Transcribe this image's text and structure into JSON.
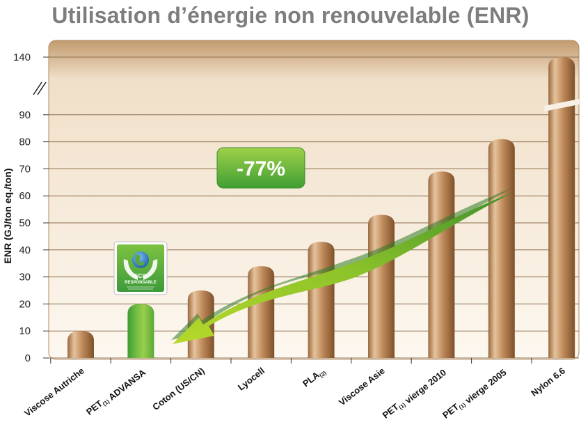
{
  "chart_data": {
    "type": "bar",
    "title": "Utilisation d’énergie non renouvelable (ENR)",
    "ylabel": "ENR (GJ/ton eq./ton)",
    "xlabel": "",
    "ylim": [
      0,
      140
    ],
    "axis_break": [
      90,
      140
    ],
    "yticks": [
      0,
      10,
      20,
      30,
      40,
      50,
      60,
      70,
      80,
      90,
      140
    ],
    "categories": [
      "Viscose Autriche",
      "PET(1) ADVANSA",
      "Coton (US/CN)",
      "Lyocell",
      "PLA(2)",
      "Viscose Asie",
      "PET(1) vierge 2010",
      "PET(1) vierge 2005",
      "Nylon 6.6"
    ],
    "category_parts": [
      [
        {
          "t": "Viscose Autriche"
        }
      ],
      [
        {
          "t": "PET"
        },
        {
          "t": "(1)",
          "sub": true
        },
        {
          "t": " ADVANSA"
        }
      ],
      [
        {
          "t": "Coton (US/CN)"
        }
      ],
      [
        {
          "t": "Lyocell"
        }
      ],
      [
        {
          "t": "PLA"
        },
        {
          "t": "(2)",
          "sub": true
        }
      ],
      [
        {
          "t": "Viscose Asie"
        }
      ],
      [
        {
          "t": "PET"
        },
        {
          "t": "(1)",
          "sub": true
        },
        {
          "t": "  vierge 2010"
        }
      ],
      [
        {
          "t": "PET"
        },
        {
          "t": "(1)",
          "sub": true
        },
        {
          "t": " vierge 2005"
        }
      ],
      [
        {
          "t": "Nylon 6.6"
        }
      ]
    ],
    "values": [
      10,
      20,
      25,
      34,
      43,
      53,
      69,
      81,
      140
    ],
    "highlight_index": 1,
    "annotation": "-77%",
    "logo_text": [
      "ECO",
      "RESPONSABLE"
    ],
    "colors": {
      "bar_light": "#d9b48e",
      "bar_mid": "#b98557",
      "bar_dark": "#8a5a30",
      "highlight_light": "#98cc4a",
      "highlight_dark": "#4aa93a",
      "plot_bg_top": "#c9a57c",
      "plot_bg_bottom": "#fbf3e8",
      "grid": "#8a6a48",
      "arrow_green": "#3e9b2e",
      "arrow_lime": "#a6cf22"
    }
  }
}
